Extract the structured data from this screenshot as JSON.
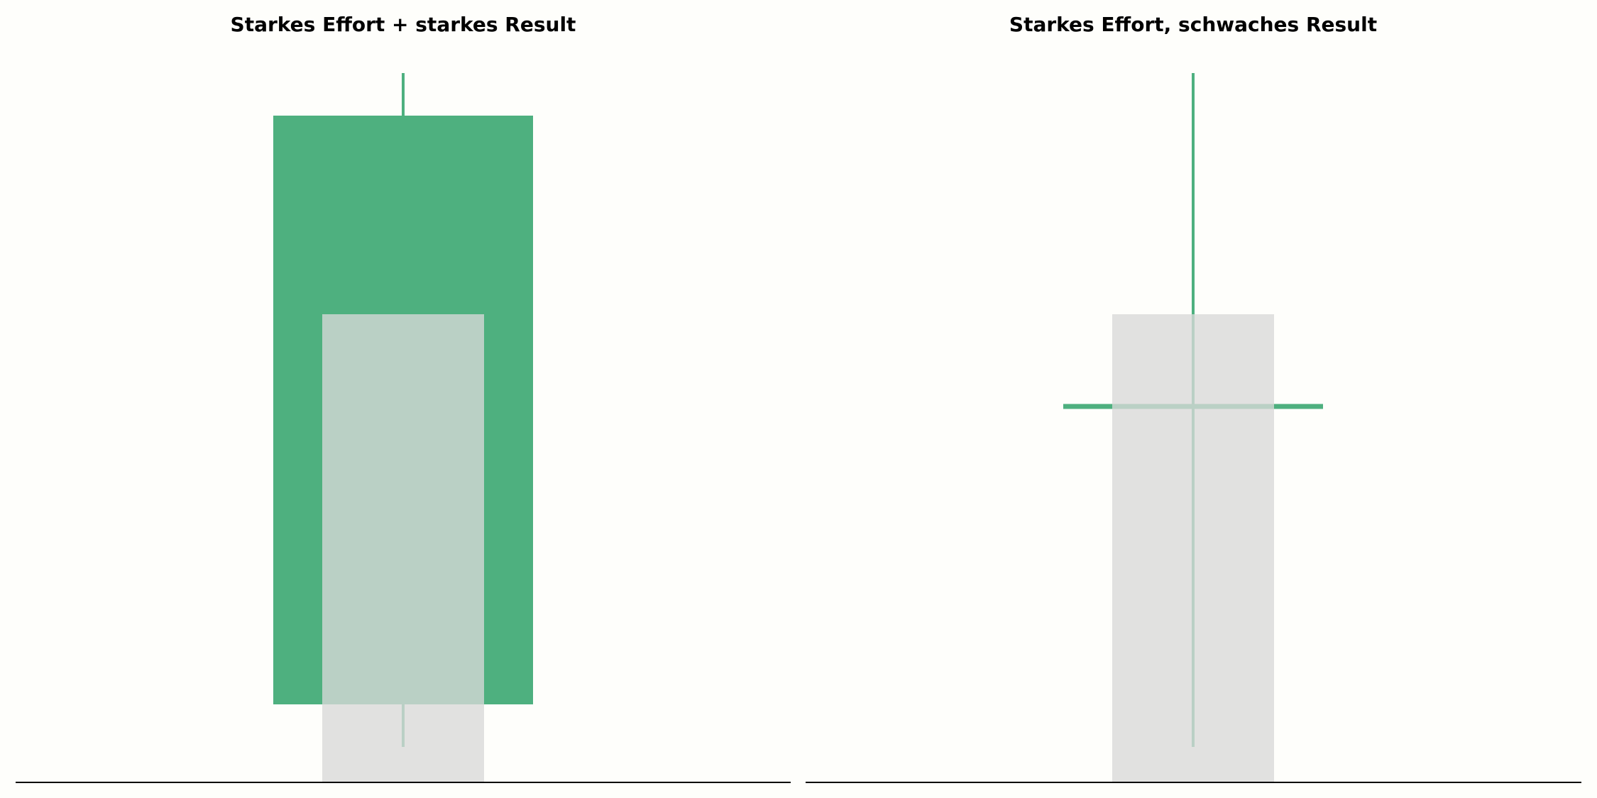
{
  "chart_data": [
    {
      "type": "candlestick",
      "title": "Starkes Effort + starkes Result",
      "xlabel": "",
      "ylabel": "",
      "grid": false,
      "axes_visible": false,
      "ylim": [
        0,
        10
      ],
      "volume": 6.6,
      "candle": {
        "open": 1.1,
        "high": 10,
        "low": 0.5,
        "close": 9.4
      },
      "colors": {
        "candle": "#4eb07f",
        "volume": "#d9d9d9"
      }
    },
    {
      "type": "candlestick",
      "title": "Starkes Effort, schwaches Result",
      "xlabel": "",
      "ylabel": "",
      "grid": false,
      "axes_visible": false,
      "ylim": [
        0,
        10
      ],
      "volume": 6.6,
      "candle": {
        "open": 5.3,
        "high": 10,
        "low": 0.5,
        "close": 5.3
      },
      "colors": {
        "candle": "#4eb07f",
        "volume": "#d9d9d9"
      }
    }
  ]
}
